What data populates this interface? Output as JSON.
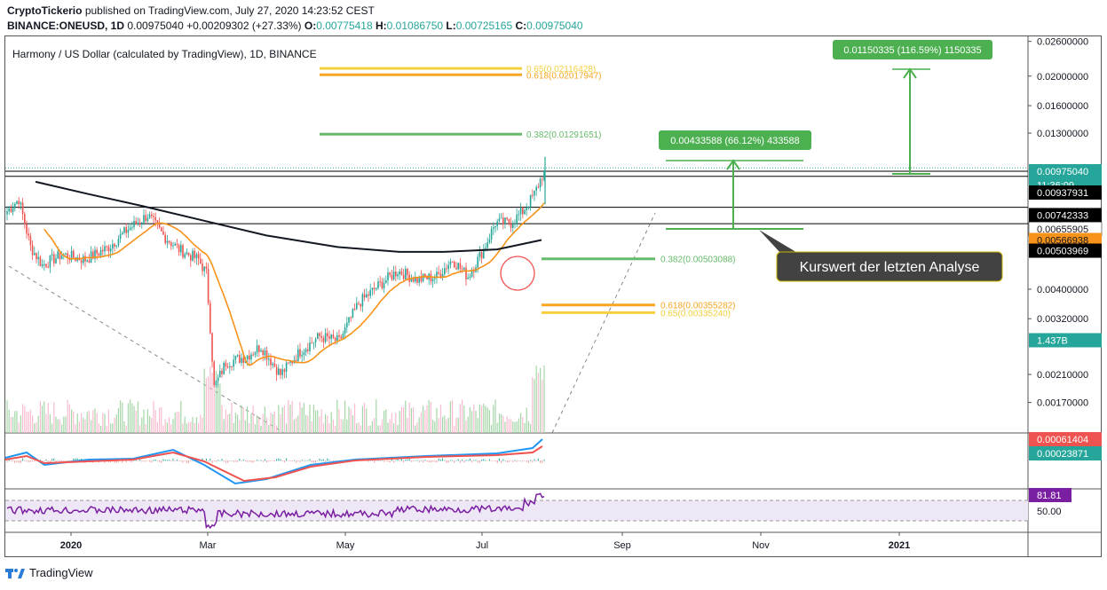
{
  "header": {
    "publisher": "CryptoTickerio",
    "published_text": "published on TradingView.com, July 27, 2020 14:23:52 CEST",
    "symbol": "BINANCE:ONEUSD, 1D",
    "last": "0.00975040",
    "change": "+0.00209302 (+27.33%)",
    "o_label": "O:",
    "o_val": "0.00775418",
    "h_label": "H:",
    "h_val": "0.01086750",
    "l_label": "L:",
    "l_val": "0.00725165",
    "c_label": "C:",
    "c_val": "0.00975040"
  },
  "chart_data": {
    "type": "candlestick",
    "title": "Harmony / US Dollar (calculated by TradingView), 1D, BINANCE",
    "x_ticks": [
      "2020",
      "Mar",
      "May",
      "Jul",
      "Sep",
      "Nov",
      "2021"
    ],
    "y_scale": "log",
    "y_range": [
      0.00135,
      0.027
    ],
    "y_ticks": [
      "0.02600000",
      "0.02000000",
      "0.01600000",
      "0.01300000",
      "0.00400000",
      "0.00320000",
      "0.00210000",
      "0.00170000"
    ],
    "price_labels": [
      {
        "text": "0.00975040",
        "bg": "#26a69a",
        "fg": "#ffffff",
        "y": 0.00975
      },
      {
        "text": "11:36:09",
        "bg": "#26a69a",
        "fg": "#ffffff",
        "y": 0.0088
      },
      {
        "text": "0.00937931",
        "bg": "#000000",
        "fg": "#ffffff",
        "y": 0.0083
      },
      {
        "text": "0.00742333",
        "bg": "#000000",
        "fg": "#ffffff",
        "y": 0.007
      },
      {
        "text": "0.00655905",
        "bg": "#ffffff",
        "fg": "#131722",
        "y": 0.0063
      },
      {
        "text": "0.00566938",
        "bg": "#f7931a",
        "fg": "#131722",
        "y": 0.0058
      },
      {
        "text": "0.00503969",
        "bg": "#000000",
        "fg": "#ffffff",
        "y": 0.00535
      },
      {
        "text": "1.437B",
        "bg": "#26a69a",
        "fg": "#ffffff",
        "y": 0.00272
      }
    ],
    "horizontal_levels": [
      0.00975,
      0.00937931,
      0.00742333,
      0.00655905
    ],
    "fib_levels": [
      {
        "label": "0.65(0.02116428)",
        "color": "#f4d03f",
        "y": 0.0212
      },
      {
        "label": "0.618(0.02017947)",
        "color": "#f5a623",
        "y": 0.0202
      },
      {
        "label": "0.382(0.01291651)",
        "color": "#66bb6a",
        "y": 0.0129
      },
      {
        "label": "0.382(0.00503088)",
        "color": "#66bb6a",
        "y": 0.00503
      },
      {
        "label": "0.618(0.00355282)",
        "color": "#f5a623",
        "y": 0.00355
      },
      {
        "label": "0.65(0.00335240)",
        "color": "#f4d03f",
        "y": 0.00335
      }
    ],
    "measure_boxes": [
      {
        "text": "0.01150335 (116.59%) 1150335"
      },
      {
        "text": "0.00433588 (66.12%) 433588"
      }
    ],
    "annotation": "Kurswert der letzten Analyse",
    "price_anchors": [
      [
        0,
        0.0072
      ],
      [
        6,
        0.0079
      ],
      [
        12,
        0.0055
      ],
      [
        18,
        0.0048
      ],
      [
        28,
        0.0052
      ],
      [
        40,
        0.005
      ],
      [
        52,
        0.0055
      ],
      [
        62,
        0.0063
      ],
      [
        72,
        0.007
      ],
      [
        80,
        0.006
      ],
      [
        88,
        0.0054
      ],
      [
        98,
        0.005
      ],
      [
        102,
        0.0045
      ],
      [
        104,
        0.003
      ],
      [
        106,
        0.0019
      ],
      [
        112,
        0.0023
      ],
      [
        122,
        0.0024
      ],
      [
        130,
        0.0026
      ],
      [
        140,
        0.0021
      ],
      [
        150,
        0.0025
      ],
      [
        160,
        0.0028
      ],
      [
        170,
        0.0027
      ],
      [
        180,
        0.0036
      ],
      [
        190,
        0.0041
      ],
      [
        200,
        0.0046
      ],
      [
        210,
        0.0043
      ],
      [
        220,
        0.0044
      ],
      [
        228,
        0.005
      ],
      [
        236,
        0.0044
      ],
      [
        244,
        0.0054
      ],
      [
        250,
        0.0066
      ],
      [
        258,
        0.0066
      ],
      [
        264,
        0.0072
      ],
      [
        270,
        0.0082
      ],
      [
        275,
        0.0098
      ]
    ],
    "macd": {
      "labels": [
        "0.00061404",
        "0.00023871"
      ],
      "colors": [
        "#ef5350",
        "#26a69a"
      ]
    },
    "rsi": {
      "labels": [
        "81.81",
        "50.00"
      ],
      "color": "#7b1fa2"
    }
  },
  "footer": {
    "brand": "TradingView"
  }
}
